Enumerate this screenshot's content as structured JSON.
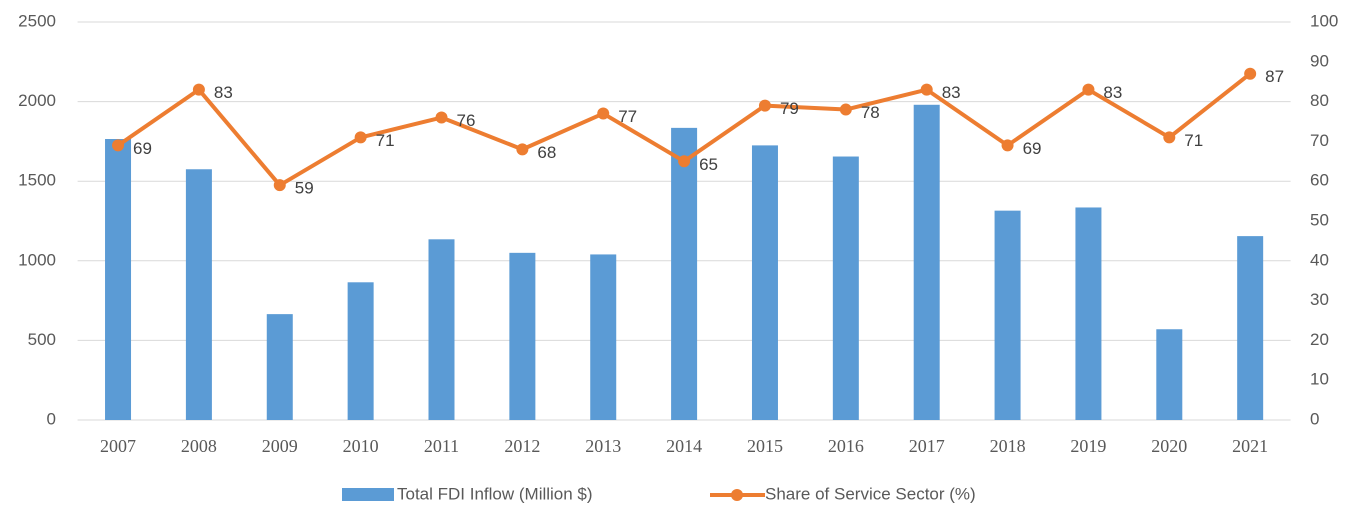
{
  "chart_data": {
    "type": "bar",
    "categories": [
      "2007",
      "2008",
      "2009",
      "2010",
      "2011",
      "2012",
      "2013",
      "2014",
      "2015",
      "2016",
      "2017",
      "2018",
      "2019",
      "2020",
      "2021"
    ],
    "series": [
      {
        "name": "Total FDI Inflow (Million $)",
        "color": "#5b9bd5",
        "type": "bar",
        "values": [
          1765,
          1575,
          665,
          865,
          1135,
          1050,
          1040,
          1835,
          1725,
          1655,
          1980,
          1315,
          1335,
          570,
          1155
        ]
      },
      {
        "name": "Share of Service Sector (%)",
        "color": "#ed7d31",
        "type": "line",
        "axis": "y2",
        "values": [
          69,
          83,
          59,
          71,
          76,
          68,
          77,
          65,
          79,
          78,
          83,
          69,
          83,
          71,
          87
        ]
      }
    ],
    "ylim": [
      0,
      2500
    ],
    "yticks": [
      0,
      500,
      1000,
      1500,
      2000,
      2500
    ],
    "y2lim": [
      0,
      100
    ],
    "y2ticks": [
      0,
      10,
      20,
      30,
      40,
      50,
      60,
      70,
      80,
      90,
      100
    ],
    "grid": true,
    "legend": "bottom"
  }
}
